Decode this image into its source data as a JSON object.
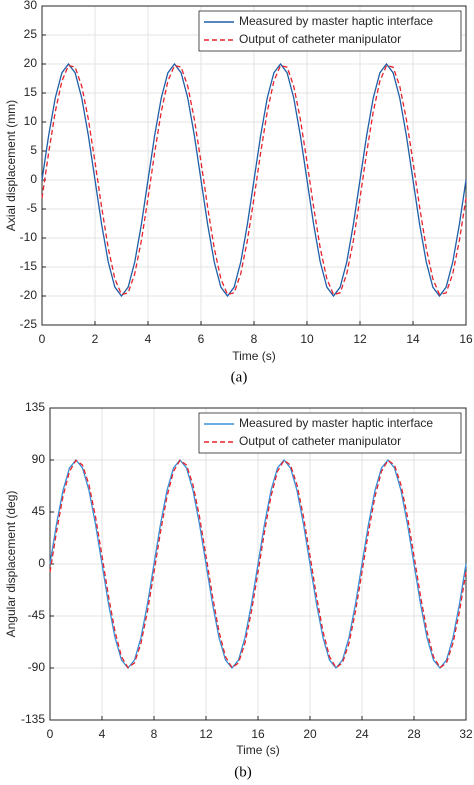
{
  "chart_data": [
    {
      "type": "line",
      "xlabel": "Time (s)",
      "ylabel": "Axial displacement (mm)",
      "caption": "(a)",
      "x": [
        0,
        0.25,
        0.5,
        0.75,
        1,
        1.25,
        1.5,
        1.75,
        2,
        2.25,
        2.5,
        2.75,
        3,
        3.25,
        3.5,
        3.75,
        4,
        4.25,
        4.5,
        4.75,
        5,
        5.25,
        5.5,
        5.75,
        6,
        6.25,
        6.5,
        6.75,
        7,
        7.25,
        7.5,
        7.75,
        8,
        8.25,
        8.5,
        8.75,
        9,
        9.25,
        9.5,
        9.75,
        10,
        10.25,
        10.5,
        10.75,
        11,
        11.25,
        11.5,
        11.75,
        12,
        12.25,
        12.5,
        12.75,
        13,
        13.25,
        13.5,
        13.75,
        14,
        14.25,
        14.5,
        14.75,
        15,
        15.25,
        15.5,
        15.75,
        16
      ],
      "series": [
        {
          "name": "Measured by master haptic interface",
          "color": "#1f5fa8",
          "linestyle": "solid",
          "values": [
            0,
            7.65,
            14.14,
            18.48,
            20,
            18.48,
            14.14,
            7.65,
            0,
            -7.65,
            -14.14,
            -18.48,
            -20,
            -18.48,
            -14.14,
            -7.65,
            0,
            7.65,
            14.14,
            18.48,
            20,
            18.48,
            14.14,
            7.65,
            0,
            -7.65,
            -14.14,
            -18.48,
            -20,
            -18.48,
            -14.14,
            -7.65,
            0,
            7.65,
            14.14,
            18.48,
            20,
            18.48,
            14.14,
            7.65,
            0,
            -7.65,
            -14.14,
            -18.48,
            -20,
            -18.48,
            -14.14,
            -7.65,
            0,
            7.65,
            14.14,
            18.48,
            20,
            18.48,
            14.14,
            7.65,
            0,
            -7.65,
            -14.14,
            -18.48,
            -20,
            -18.48,
            -14.14,
            -7.65,
            0
          ]
        },
        {
          "name": "Output of catheter manipulator",
          "color": "#e8222a",
          "linestyle": "dashed",
          "values": [
            -3.13,
            4.67,
            11.76,
            17.05,
            19.75,
            19.45,
            16.18,
            10.45,
            3.13,
            -4.67,
            -11.76,
            -17.05,
            -19.75,
            -19.45,
            -16.18,
            -10.45,
            -3.13,
            4.67,
            11.76,
            17.05,
            19.75,
            19.45,
            16.18,
            10.45,
            3.13,
            -4.67,
            -11.76,
            -17.05,
            -19.75,
            -19.45,
            -16.18,
            -10.45,
            -3.13,
            4.67,
            11.76,
            17.05,
            19.75,
            19.45,
            16.18,
            10.45,
            3.13,
            -4.67,
            -11.76,
            -17.05,
            -19.75,
            -19.45,
            -16.18,
            -10.45,
            -3.13,
            4.67,
            11.76,
            17.05,
            19.75,
            19.45,
            16.18,
            10.45,
            3.13,
            -4.67,
            -11.76,
            -17.05,
            -19.75,
            -19.45,
            -16.18,
            -10.45,
            -3.13
          ]
        }
      ],
      "xlim": [
        0,
        16
      ],
      "xticks": [
        0,
        2,
        4,
        6,
        8,
        10,
        12,
        14,
        16
      ],
      "ylim": [
        -25,
        30
      ],
      "yticks": [
        -25,
        -20,
        -15,
        -10,
        -5,
        0,
        5,
        10,
        15,
        20,
        25,
        30
      ],
      "grid": true,
      "legend": "upper right"
    },
    {
      "type": "line",
      "xlabel": "Time (s)",
      "ylabel": "Angular displacement (deg)",
      "caption": "(b)",
      "x": [
        0,
        0.5,
        1,
        1.5,
        2,
        2.5,
        3,
        3.5,
        4,
        4.5,
        5,
        5.5,
        6,
        6.5,
        7,
        7.5,
        8,
        8.5,
        9,
        9.5,
        10,
        10.5,
        11,
        11.5,
        12,
        12.5,
        13,
        13.5,
        14,
        14.5,
        15,
        15.5,
        16,
        16.5,
        17,
        17.5,
        18,
        18.5,
        19,
        19.5,
        20,
        20.5,
        21,
        21.5,
        22,
        22.5,
        23,
        23.5,
        24,
        24.5,
        25,
        25.5,
        26,
        26.5,
        27,
        27.5,
        28,
        28.5,
        29,
        29.5,
        30,
        30.5,
        31,
        31.5,
        32
      ],
      "series": [
        {
          "name": "Measured by master haptic interface",
          "color": "#3a8fd6",
          "linestyle": "solid",
          "values": [
            0,
            34.44,
            63.64,
            83.15,
            90,
            83.15,
            63.64,
            34.44,
            0,
            -34.44,
            -63.64,
            -83.15,
            -90,
            -83.15,
            -63.64,
            -34.44,
            0,
            34.44,
            63.64,
            83.15,
            90,
            83.15,
            63.64,
            34.44,
            0,
            -34.44,
            -63.64,
            -83.15,
            -90,
            -83.15,
            -63.64,
            -34.44,
            0,
            34.44,
            63.64,
            83.15,
            90,
            83.15,
            63.64,
            34.44,
            0,
            -34.44,
            -63.64,
            -83.15,
            -90,
            -83.15,
            -63.64,
            -34.44,
            0,
            34.44,
            63.64,
            83.15,
            90,
            83.15,
            63.64,
            34.44,
            0,
            -34.44,
            -63.64,
            -83.15,
            -90,
            -83.15,
            -63.64,
            -34.44,
            0
          ]
        },
        {
          "name": "Output of catheter manipulator",
          "color": "#e8222a",
          "linestyle": "dashed",
          "values": [
            -7.06,
            27.81,
            58.45,
            80.19,
            89.72,
            85.6,
            68.44,
            40.86,
            7.06,
            -27.81,
            -58.45,
            -80.19,
            -89.72,
            -85.6,
            -68.44,
            -40.86,
            -7.06,
            27.81,
            58.45,
            80.19,
            89.72,
            85.6,
            68.44,
            40.86,
            7.06,
            -27.81,
            -58.45,
            -80.19,
            -89.72,
            -85.6,
            -68.44,
            -40.86,
            -7.06,
            27.81,
            58.45,
            80.19,
            89.72,
            85.6,
            68.44,
            40.86,
            7.06,
            -27.81,
            -58.45,
            -80.19,
            -89.72,
            -85.6,
            -68.44,
            -40.86,
            -7.06,
            27.81,
            58.45,
            80.19,
            89.72,
            85.6,
            68.44,
            40.86,
            7.06,
            -27.81,
            -58.45,
            -80.19,
            -89.72,
            -85.6,
            -68.44,
            -40.86,
            -7.06
          ]
        }
      ],
      "xlim": [
        0,
        32
      ],
      "xticks": [
        0,
        4,
        8,
        12,
        16,
        20,
        24,
        28,
        32
      ],
      "ylim": [
        -135,
        135
      ],
      "yticks": [
        -135,
        -90,
        -45,
        0,
        45,
        90,
        135
      ],
      "grid": true,
      "legend": "upper right"
    }
  ]
}
